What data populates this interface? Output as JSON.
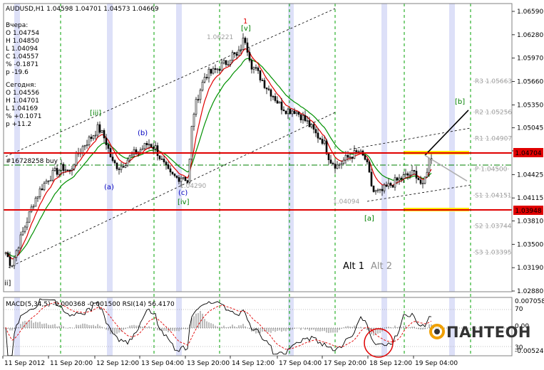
{
  "header": {
    "title": "AUDUSD,H1  1.04598 1.04701 1.04573 1.04669"
  },
  "info": {
    "yesterday": [
      "Вчера:",
      "O 1.04754",
      "H 1.04850",
      "L 1.04094",
      "C 1.04557",
      "% -0.1871",
      "p -19.6"
    ],
    "today": [
      "Сегодня:",
      "O 1.04556",
      "H 1.04701",
      "L 1.04169",
      "% +0.1071",
      "p +11.2"
    ]
  },
  "trade_label": "#16728258 buy",
  "price_axis": {
    "ticks": [
      "1.06590",
      "1.06280",
      "1.05970",
      "1.05660",
      "1.05350",
      "1.05045",
      "1.04740",
      "1.04425",
      "1.04115",
      "1.03810",
      "1.03500",
      "1.03190",
      "1.02880"
    ],
    "tick_values": [
      1.0659,
      1.0628,
      1.0597,
      1.0566,
      1.0535,
      1.05045,
      1.0474,
      1.04425,
      1.04115,
      1.0381,
      1.035,
      1.0319,
      1.0288
    ],
    "resistance_label": "1.04704",
    "support_label": "1.03948"
  },
  "pivots": [
    {
      "label": "R3 1.05663",
      "value": 1.05663
    },
    {
      "label": "R2 1.05256",
      "value": 1.05256
    },
    {
      "label": "R1 1.04907",
      "value": 1.04907
    },
    {
      "label": "P 1.04500",
      "value": 1.045
    },
    {
      "label": "S1 1.04151",
      "value": 1.04151
    },
    {
      "label": "S2 1.03744",
      "value": 1.03744
    },
    {
      "label": "S3 1.03395",
      "value": 1.03395
    }
  ],
  "time_axis": [
    "11 Sep 2012",
    "11 Sep 20:00",
    "12 Sep 12:00",
    "13 Sep 04:00",
    "13 Sep 20:00",
    "14 Sep 12:00",
    "17 Sep 04:00",
    "17 Sep 20:00",
    "18 Sep 12:00",
    "19 Sep 04:00"
  ],
  "wave_labels": {
    "iii": "[iii]",
    "a": "(a)",
    "b": "(b)",
    "c": "(c)",
    "iv": "[iv]",
    "v": "[v]",
    "one": "1",
    "a_sq": "[a]",
    "b_sq": "[b]",
    "ii": "ii]"
  },
  "price_marks": {
    "high": "1.06221",
    "low1": "1.04290",
    "low2": "1.04094"
  },
  "alt_labels": {
    "alt1": "Alt 1",
    "alt2": "Alt 2"
  },
  "indicator": {
    "title": "MACD(5,34,5) -0.000368 -0.001500  RSI(14) 56.4170",
    "ticks": [
      "0.007058",
      "70",
      "0.00",
      "30",
      "-0.00524"
    ]
  },
  "logo": "ПАНТЕОН",
  "colors": {
    "resistance": "#e00000",
    "fast_ma": "#e00000",
    "slow_ma": "#009000",
    "grid": "#00a000",
    "band": "#dde0f8",
    "zone": "#ffe800",
    "wave_green": "#008000",
    "wave_blue": "#0000c0",
    "wave_red": "#e00000"
  },
  "chart_data": {
    "type": "candlestick",
    "symbol": "AUDUSD",
    "timeframe": "H1",
    "ylim": [
      1.0288,
      1.0668
    ],
    "resistance": 1.04704,
    "support": 1.03948,
    "entry": 1.0459,
    "path": [
      [
        0,
        1.0339
      ],
      [
        8,
        1.0322
      ],
      [
        18,
        1.035
      ],
      [
        30,
        1.0382
      ],
      [
        40,
        1.0408
      ],
      [
        50,
        1.0425
      ],
      [
        60,
        1.0438
      ],
      [
        70,
        1.0446
      ],
      [
        80,
        1.0452
      ],
      [
        90,
        1.0446
      ],
      [
        100,
        1.0468
      ],
      [
        110,
        1.0482
      ],
      [
        120,
        1.0492
      ],
      [
        130,
        1.0505
      ],
      [
        140,
        1.0488
      ],
      [
        150,
        1.0458
      ],
      [
        160,
        1.0452
      ],
      [
        170,
        1.0462
      ],
      [
        180,
        1.047
      ],
      [
        190,
        1.0476
      ],
      [
        200,
        1.0484
      ],
      [
        210,
        1.0478
      ],
      [
        220,
        1.0458
      ],
      [
        230,
        1.0442
      ],
      [
        240,
        1.0438
      ],
      [
        250,
        1.0441
      ],
      [
        256,
        1.0432
      ],
      [
        262,
        1.0518
      ],
      [
        270,
        1.0548
      ],
      [
        280,
        1.0575
      ],
      [
        290,
        1.0578
      ],
      [
        300,
        1.0585
      ],
      [
        310,
        1.0592
      ],
      [
        318,
        1.0602
      ],
      [
        325,
        1.0598
      ],
      [
        335,
        1.0625
      ],
      [
        345,
        1.0588
      ],
      [
        355,
        1.0575
      ],
      [
        365,
        1.056
      ],
      [
        375,
        1.0548
      ],
      [
        385,
        1.0534
      ],
      [
        395,
        1.0528
      ],
      [
        405,
        1.0528
      ],
      [
        415,
        1.052
      ],
      [
        425,
        1.0509
      ],
      [
        435,
        1.0496
      ],
      [
        445,
        1.0488
      ],
      [
        455,
        1.0462
      ],
      [
        465,
        1.0454
      ],
      [
        475,
        1.0462
      ],
      [
        485,
        1.0468
      ],
      [
        495,
        1.0472
      ],
      [
        505,
        1.0462
      ],
      [
        515,
        1.042
      ],
      [
        525,
        1.0418
      ],
      [
        535,
        1.0426
      ],
      [
        545,
        1.0432
      ],
      [
        555,
        1.0438
      ],
      [
        565,
        1.0442
      ],
      [
        575,
        1.0445
      ],
      [
        585,
        1.0425
      ],
      [
        595,
        1.0466
      ]
    ],
    "forecast": {
      "b_path": [
        [
          596,
          1.0468
        ],
        [
          657,
          1.0528
        ]
      ],
      "alt_path": [
        [
          596,
          1.0468
        ],
        [
          655,
          1.0434
        ]
      ]
    }
  }
}
